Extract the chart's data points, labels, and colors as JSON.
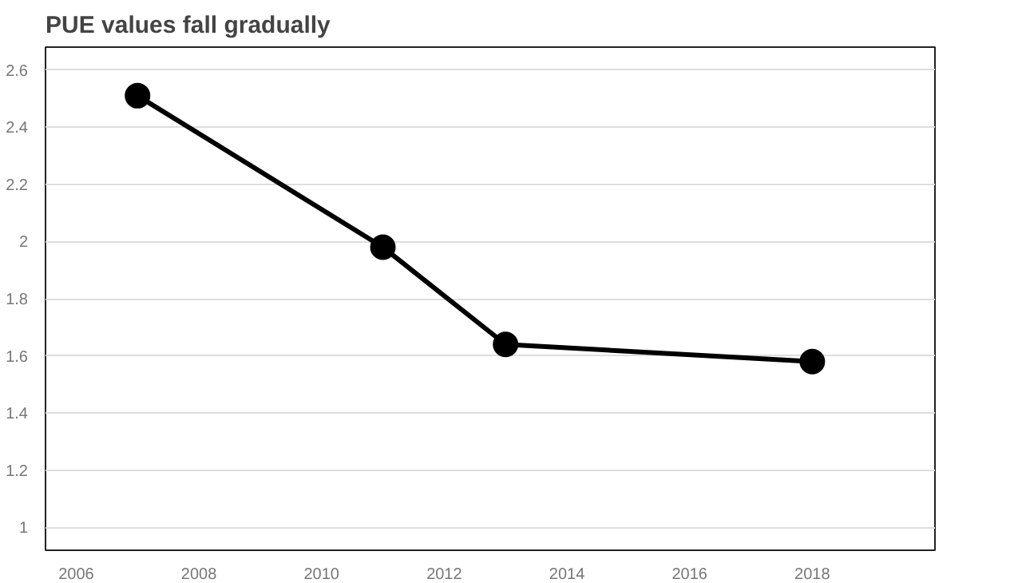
{
  "chart_data": {
    "type": "line",
    "title": "PUE values fall gradually",
    "x": [
      2007,
      2011,
      2013,
      2018
    ],
    "series": [
      {
        "color": "#000000",
        "values": [
          2.51,
          1.98,
          1.64,
          1.58
        ]
      }
    ],
    "xlim": [
      2005.5,
      2020
    ],
    "xticks": [
      2006,
      2008,
      2010,
      2012,
      2014,
      2016,
      2018
    ],
    "ylim": [
      0.92,
      2.68
    ],
    "yticks": [
      1,
      1.2,
      1.4,
      1.6,
      1.8,
      2,
      2.2,
      2.4,
      2.6
    ],
    "grid": "y",
    "marker": "circle",
    "line_style": "solid"
  }
}
